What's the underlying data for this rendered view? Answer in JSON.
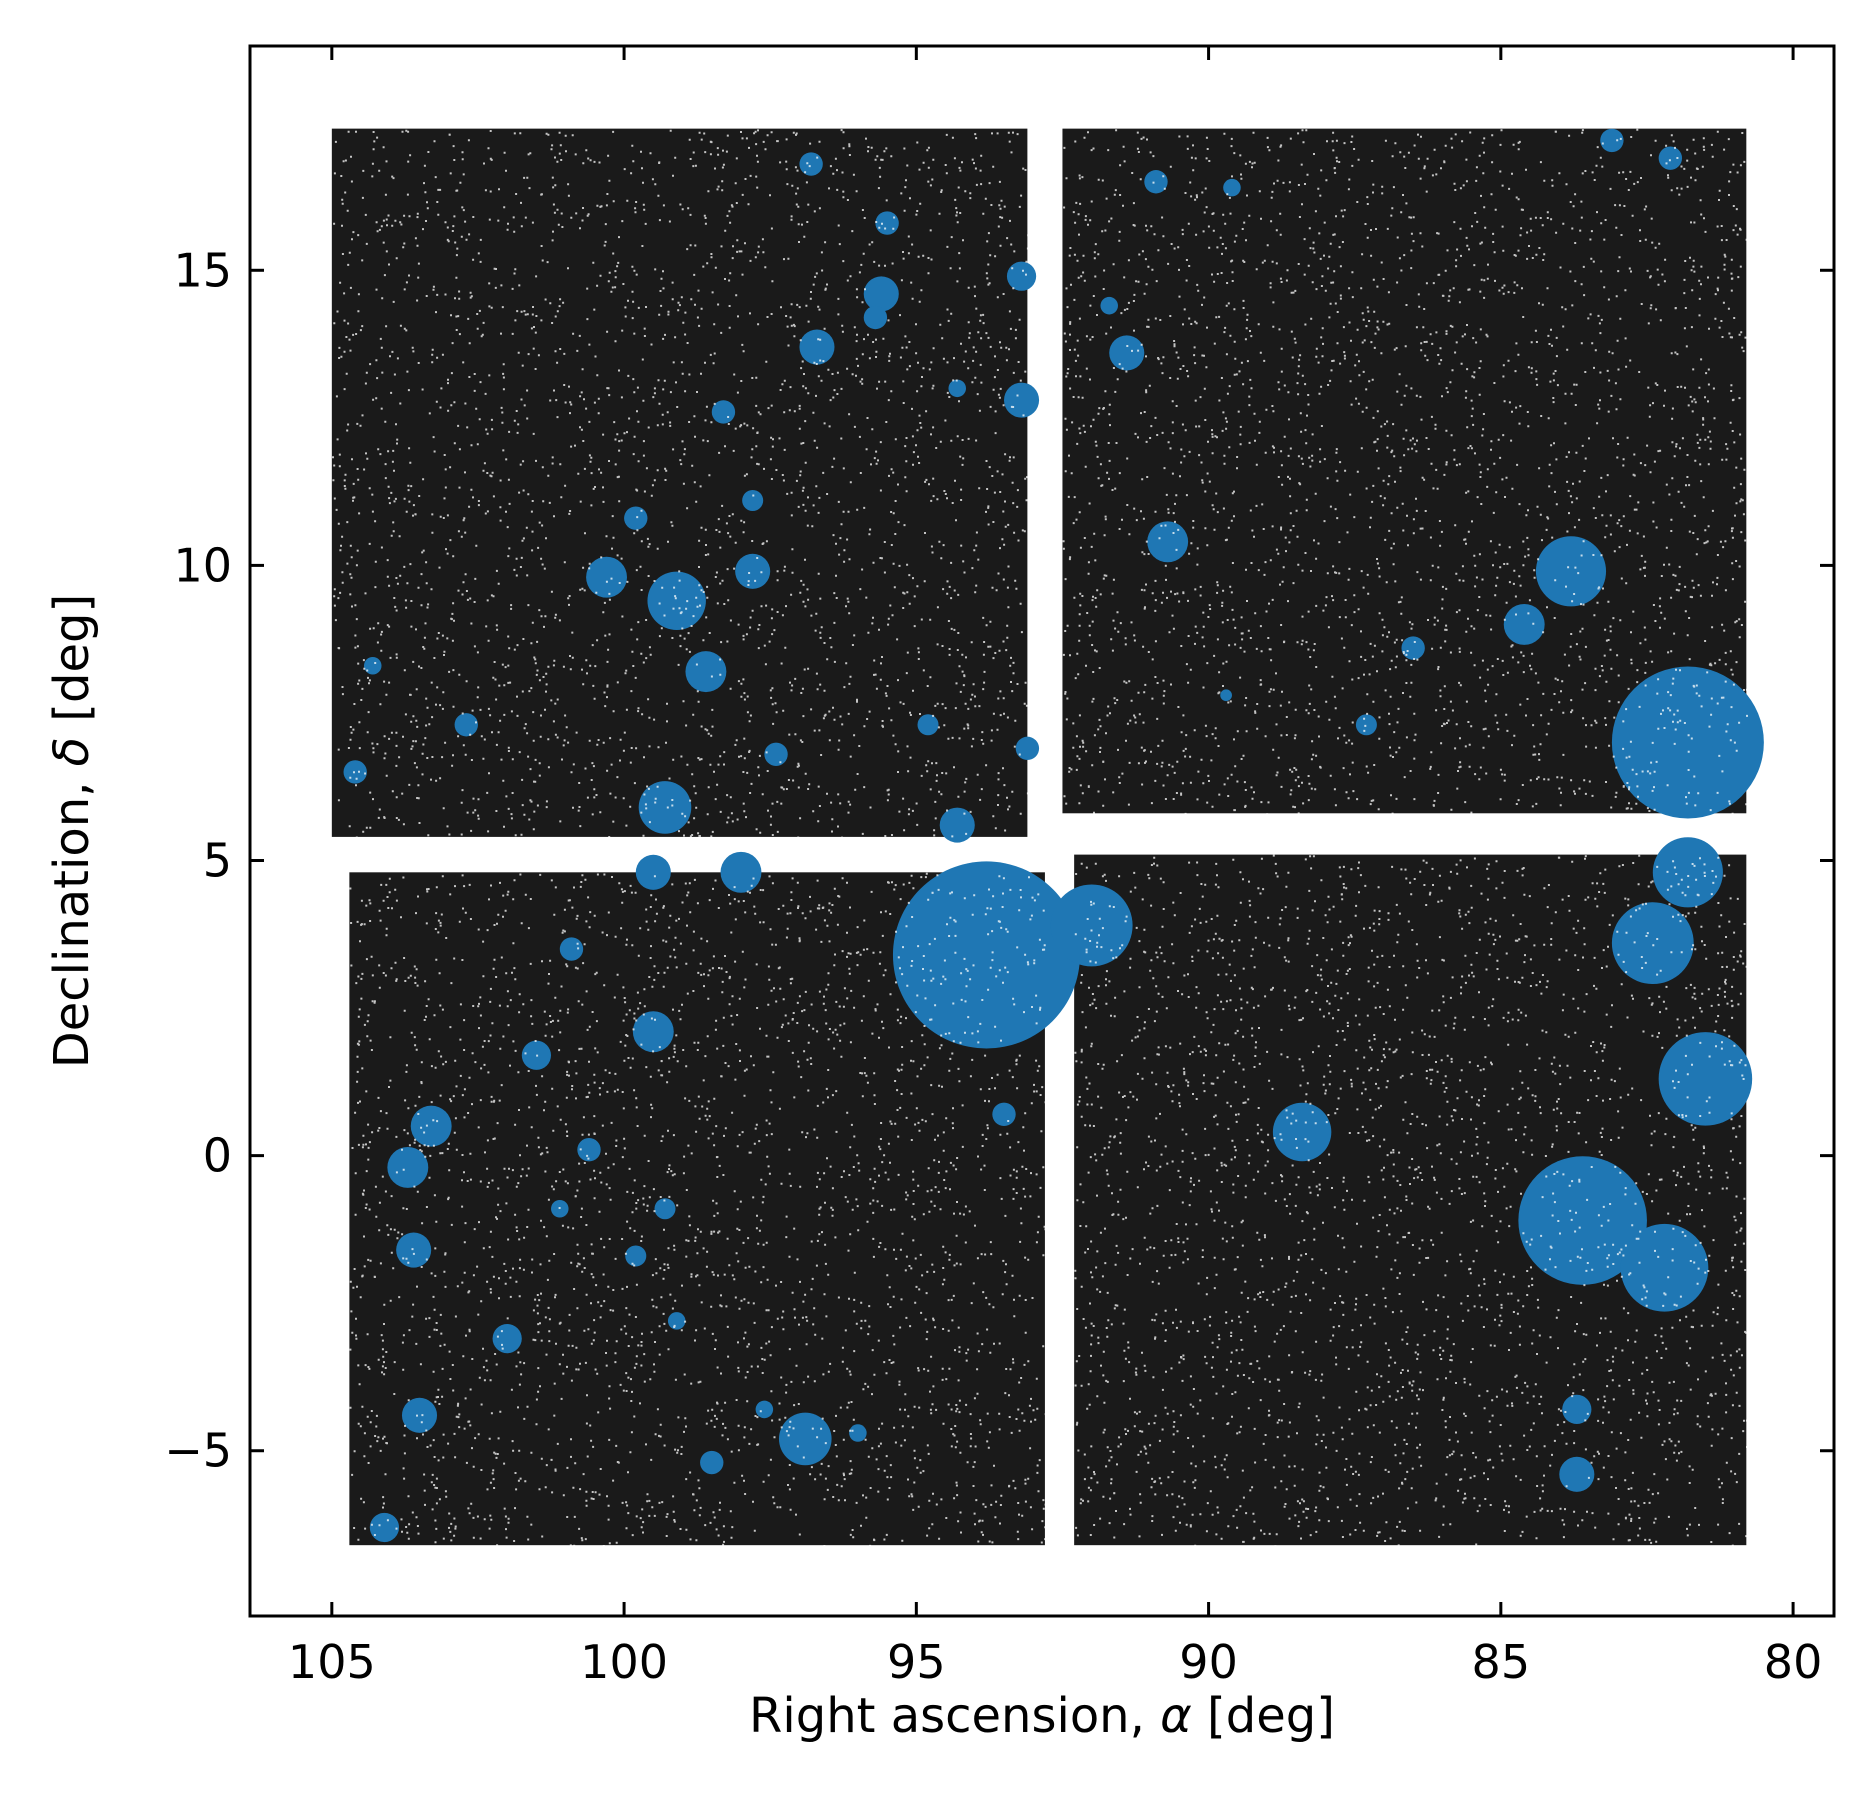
{
  "chart_data": {
    "type": "scatter",
    "title": "",
    "xlabel_parts": [
      "Right ascension, ",
      "α",
      " [deg]"
    ],
    "ylabel_parts": [
      "Declination, ",
      "δ",
      " [deg]"
    ],
    "xlim": [
      106.4,
      79.3
    ],
    "ylim": [
      -7.8,
      18.8
    ],
    "x_inverted": true,
    "xticks": [
      105,
      100,
      95,
      90,
      85,
      80
    ],
    "yticks": [
      -5,
      0,
      5,
      10,
      15
    ],
    "ytick_labels": [
      "−5",
      "0",
      "5",
      "10",
      "15"
    ],
    "grid": false,
    "legend": "none",
    "colors": {
      "background_points": "#000000",
      "masked_points": "#1f77b4"
    },
    "footprint_quadrants": [
      {
        "name": "upper-left",
        "x_range": [
          105.0,
          93.1
        ],
        "y_range": [
          5.4,
          17.4
        ]
      },
      {
        "name": "upper-right",
        "x_range": [
          92.5,
          80.8
        ],
        "y_range": [
          5.8,
          17.4
        ]
      },
      {
        "name": "lower-left",
        "x_range": [
          104.7,
          92.8
        ],
        "y_range": [
          -6.6,
          4.8
        ]
      },
      {
        "name": "lower-right",
        "x_range": [
          92.3,
          80.8
        ],
        "y_range": [
          -6.6,
          5.1
        ]
      }
    ],
    "masked_regions": [
      {
        "x": 93.8,
        "y": 3.4,
        "r": 1.6
      },
      {
        "x": 81.8,
        "y": 7.0,
        "r": 1.3
      },
      {
        "x": 83.6,
        "y": -1.1,
        "r": 1.1
      },
      {
        "x": 81.5,
        "y": 1.3,
        "r": 0.8
      },
      {
        "x": 82.2,
        "y": -1.9,
        "r": 0.75
      },
      {
        "x": 82.4,
        "y": 3.6,
        "r": 0.7
      },
      {
        "x": 81.8,
        "y": 4.8,
        "r": 0.6
      },
      {
        "x": 83.8,
        "y": 9.9,
        "r": 0.6
      },
      {
        "x": 92.0,
        "y": 3.9,
        "r": 0.7
      },
      {
        "x": 99.1,
        "y": 9.4,
        "r": 0.5
      },
      {
        "x": 96.9,
        "y": -4.8,
        "r": 0.45
      },
      {
        "x": 99.3,
        "y": 5.9,
        "r": 0.45
      },
      {
        "x": 90.7,
        "y": 10.4,
        "r": 0.35
      },
      {
        "x": 88.4,
        "y": 0.4,
        "r": 0.5
      },
      {
        "x": 100.3,
        "y": 9.8,
        "r": 0.35
      },
      {
        "x": 99.5,
        "y": 2.1,
        "r": 0.35
      },
      {
        "x": 98.6,
        "y": 8.2,
        "r": 0.35
      },
      {
        "x": 97.8,
        "y": 9.9,
        "r": 0.3
      },
      {
        "x": 103.7,
        "y": -0.2,
        "r": 0.35
      },
      {
        "x": 103.3,
        "y": 0.5,
        "r": 0.35
      },
      {
        "x": 103.6,
        "y": -1.6,
        "r": 0.3
      },
      {
        "x": 103.5,
        "y": -4.4,
        "r": 0.3
      },
      {
        "x": 102.0,
        "y": -3.1,
        "r": 0.25
      },
      {
        "x": 96.7,
        "y": 13.7,
        "r": 0.3
      },
      {
        "x": 95.6,
        "y": 14.6,
        "r": 0.3
      },
      {
        "x": 95.5,
        "y": 15.8,
        "r": 0.2
      },
      {
        "x": 93.2,
        "y": 12.8,
        "r": 0.3
      },
      {
        "x": 93.2,
        "y": 14.9,
        "r": 0.25
      },
      {
        "x": 91.4,
        "y": 13.6,
        "r": 0.3
      },
      {
        "x": 99.5,
        "y": 4.8,
        "r": 0.3
      },
      {
        "x": 98.0,
        "y": 4.8,
        "r": 0.35
      },
      {
        "x": 100.9,
        "y": 3.5,
        "r": 0.2
      },
      {
        "x": 101.5,
        "y": 1.7,
        "r": 0.25
      },
      {
        "x": 100.6,
        "y": 0.1,
        "r": 0.2
      },
      {
        "x": 102.7,
        "y": 7.3,
        "r": 0.2
      },
      {
        "x": 104.6,
        "y": 6.5,
        "r": 0.2
      },
      {
        "x": 104.3,
        "y": 8.3,
        "r": 0.15
      },
      {
        "x": 99.8,
        "y": 10.8,
        "r": 0.2
      },
      {
        "x": 98.3,
        "y": 12.6,
        "r": 0.2
      },
      {
        "x": 97.8,
        "y": 11.1,
        "r": 0.18
      },
      {
        "x": 97.4,
        "y": 6.8,
        "r": 0.2
      },
      {
        "x": 96.8,
        "y": 16.8,
        "r": 0.2
      },
      {
        "x": 95.7,
        "y": 14.2,
        "r": 0.2
      },
      {
        "x": 94.8,
        "y": 7.3,
        "r": 0.18
      },
      {
        "x": 93.1,
        "y": 6.9,
        "r": 0.2
      },
      {
        "x": 94.3,
        "y": 5.6,
        "r": 0.3
      },
      {
        "x": 94.3,
        "y": 13.0,
        "r": 0.15
      },
      {
        "x": 91.7,
        "y": 14.4,
        "r": 0.15
      },
      {
        "x": 90.9,
        "y": 16.5,
        "r": 0.2
      },
      {
        "x": 89.6,
        "y": 16.4,
        "r": 0.15
      },
      {
        "x": 82.1,
        "y": 16.9,
        "r": 0.2
      },
      {
        "x": 83.1,
        "y": 17.2,
        "r": 0.2
      },
      {
        "x": 84.6,
        "y": 9.0,
        "r": 0.35
      },
      {
        "x": 86.5,
        "y": 8.6,
        "r": 0.2
      },
      {
        "x": 87.3,
        "y": 7.3,
        "r": 0.18
      },
      {
        "x": 89.7,
        "y": 7.8,
        "r": 0.1
      },
      {
        "x": 98.5,
        "y": -5.2,
        "r": 0.2
      },
      {
        "x": 97.6,
        "y": -4.3,
        "r": 0.15
      },
      {
        "x": 96.0,
        "y": -4.7,
        "r": 0.15
      },
      {
        "x": 93.5,
        "y": 0.7,
        "r": 0.2
      },
      {
        "x": 99.8,
        "y": -1.7,
        "r": 0.18
      },
      {
        "x": 99.3,
        "y": -0.9,
        "r": 0.18
      },
      {
        "x": 99.1,
        "y": -2.8,
        "r": 0.15
      },
      {
        "x": 101.1,
        "y": -0.9,
        "r": 0.15
      },
      {
        "x": 104.1,
        "y": -6.3,
        "r": 0.25
      },
      {
        "x": 83.7,
        "y": -5.4,
        "r": 0.3
      },
      {
        "x": 83.7,
        "y": -4.3,
        "r": 0.25
      }
    ]
  }
}
